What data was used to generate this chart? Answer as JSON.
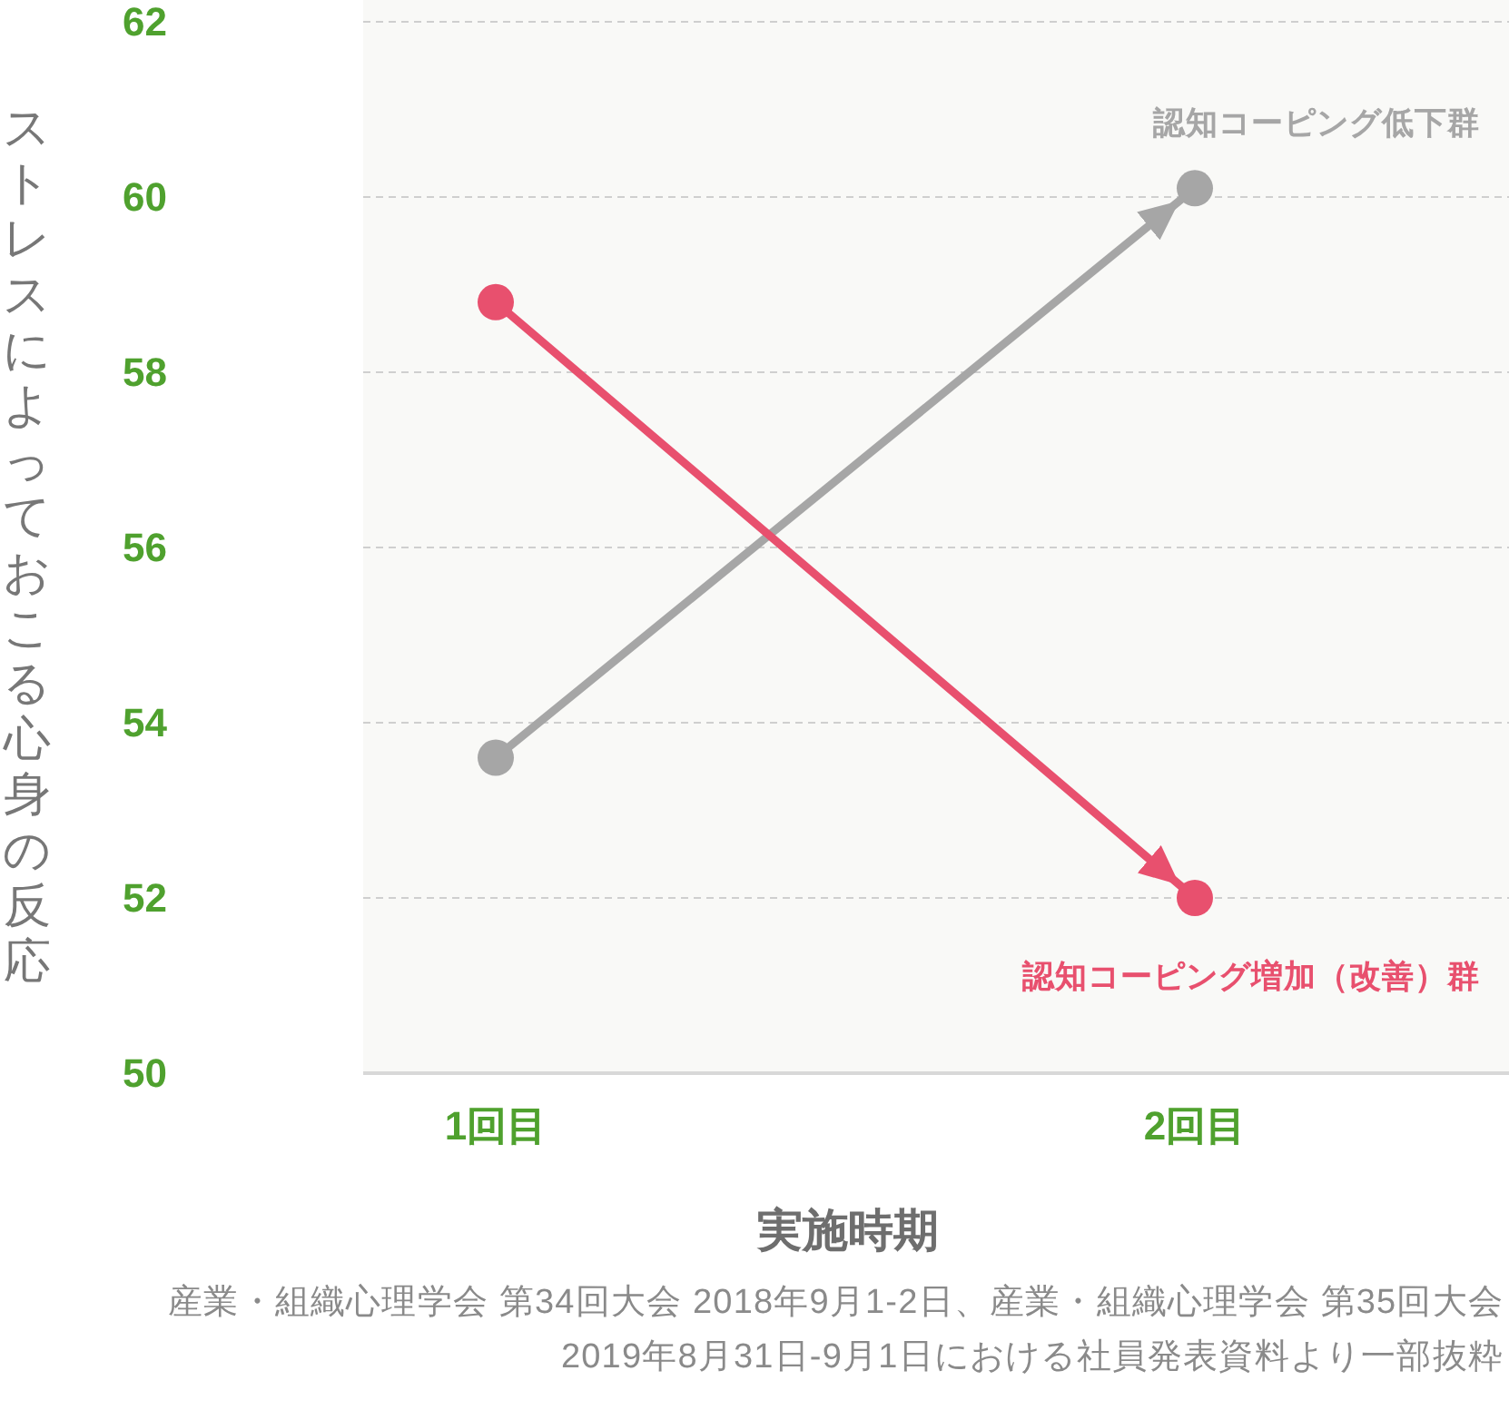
{
  "chart_data": {
    "type": "line",
    "categories": [
      "1回目",
      "2回目"
    ],
    "series": [
      {
        "name": "認知コーピング低下群",
        "color": "#a6a6a6",
        "values": [
          53.6,
          60.1
        ]
      },
      {
        "name": "認知コーピング増加（改善）群",
        "color": "#e8506e",
        "values": [
          58.8,
          52.0
        ]
      }
    ],
    "ylim": [
      50,
      62
    ],
    "yticks": [
      50,
      52,
      54,
      56,
      58,
      60,
      62
    ],
    "ylabel": "ストレスによっておこる心身の反応",
    "xlabel": "実施時期",
    "annotations": [
      "産業・組織心理学会 第34回大会 2018年9月1-2日、産業・組織心理学会 第35回大会 2019年8月31日-9月1日における社員発表資料より一部抜粋"
    ],
    "grid": "y",
    "marker": "circle",
    "line_style": "solid"
  }
}
